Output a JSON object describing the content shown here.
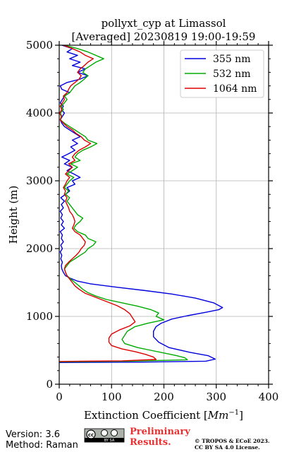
{
  "chart_data": {
    "type": "line",
    "title_line1": "pollyxt_cyp at Limassol",
    "title_line2": "[Averaged] 20230819 19:00-19:59",
    "xlabel_prefix": "Extinction Coefficient [",
    "xlabel_unit": "Mm",
    "xlabel_exp": "−1",
    "xlabel_suffix": "]",
    "ylabel": "Height (m)",
    "xlim": [
      0,
      400
    ],
    "ylim": [
      0,
      5000
    ],
    "xticks": [
      0,
      100,
      200,
      300,
      400
    ],
    "yticks": [
      0,
      1000,
      2000,
      3000,
      4000,
      5000
    ],
    "grid": true,
    "legend_position": "top-right",
    "series": [
      {
        "name": "355 nm",
        "color": "#0000dd",
        "points": [
          [
            0,
            320
          ],
          [
            150,
            325
          ],
          [
            280,
            340
          ],
          [
            298,
            370
          ],
          [
            285,
            420
          ],
          [
            250,
            470
          ],
          [
            210,
            540
          ],
          [
            190,
            620
          ],
          [
            180,
            700
          ],
          [
            180,
            780
          ],
          [
            185,
            850
          ],
          [
            195,
            900
          ],
          [
            215,
            960
          ],
          [
            245,
            1010
          ],
          [
            280,
            1060
          ],
          [
            305,
            1100
          ],
          [
            312,
            1130
          ],
          [
            295,
            1200
          ],
          [
            260,
            1270
          ],
          [
            215,
            1330
          ],
          [
            165,
            1380
          ],
          [
            110,
            1430
          ],
          [
            60,
            1480
          ],
          [
            35,
            1520
          ],
          [
            22,
            1560
          ],
          [
            12,
            1600
          ],
          [
            8,
            1650
          ],
          [
            5,
            1700
          ],
          [
            4,
            1750
          ],
          [
            6,
            1800
          ],
          [
            3,
            1850
          ],
          [
            5,
            1900
          ],
          [
            2,
            1950
          ],
          [
            6,
            2000
          ],
          [
            3,
            2050
          ],
          [
            8,
            2100
          ],
          [
            4,
            2150
          ],
          [
            6,
            2200
          ],
          [
            2,
            2250
          ],
          [
            10,
            2300
          ],
          [
            4,
            2350
          ],
          [
            8,
            2400
          ],
          [
            3,
            2450
          ],
          [
            6,
            2500
          ],
          [
            2,
            2550
          ],
          [
            8,
            2600
          ],
          [
            4,
            2650
          ],
          [
            10,
            2700
          ],
          [
            3,
            2750
          ],
          [
            12,
            2800
          ],
          [
            20,
            2850
          ],
          [
            15,
            2900
          ],
          [
            30,
            2950
          ],
          [
            25,
            3000
          ],
          [
            40,
            3050
          ],
          [
            28,
            3100
          ],
          [
            15,
            3150
          ],
          [
            25,
            3200
          ],
          [
            10,
            3250
          ],
          [
            20,
            3300
          ],
          [
            5,
            3350
          ],
          [
            18,
            3400
          ],
          [
            30,
            3450
          ],
          [
            22,
            3500
          ],
          [
            35,
            3550
          ],
          [
            25,
            3600
          ],
          [
            40,
            3650
          ],
          [
            30,
            3700
          ],
          [
            20,
            3750
          ],
          [
            10,
            3800
          ],
          [
            5,
            3850
          ],
          [
            2,
            3900
          ],
          [
            6,
            3950
          ],
          [
            10,
            4000
          ],
          [
            4,
            4050
          ],
          [
            8,
            4100
          ],
          [
            2,
            4150
          ],
          [
            6,
            4200
          ],
          [
            10,
            4250
          ],
          [
            20,
            4300
          ],
          [
            5,
            4350
          ],
          [
            2,
            4400
          ],
          [
            15,
            4450
          ],
          [
            40,
            4500
          ],
          [
            55,
            4550
          ],
          [
            35,
            4600
          ],
          [
            50,
            4650
          ],
          [
            25,
            4700
          ],
          [
            40,
            4750
          ],
          [
            20,
            4800
          ],
          [
            35,
            4850
          ],
          [
            15,
            4900
          ],
          [
            25,
            4950
          ],
          [
            5,
            5000
          ]
        ]
      },
      {
        "name": "532 nm",
        "color": "#00aa00",
        "points": [
          [
            0,
            330
          ],
          [
            130,
            340
          ],
          [
            245,
            360
          ],
          [
            240,
            390
          ],
          [
            225,
            420
          ],
          [
            200,
            460
          ],
          [
            175,
            500
          ],
          [
            150,
            540
          ],
          [
            125,
            600
          ],
          [
            120,
            660
          ],
          [
            125,
            720
          ],
          [
            130,
            780
          ],
          [
            145,
            850
          ],
          [
            170,
            900
          ],
          [
            200,
            950
          ],
          [
            185,
            1000
          ],
          [
            190,
            1050
          ],
          [
            175,
            1100
          ],
          [
            150,
            1150
          ],
          [
            120,
            1200
          ],
          [
            90,
            1250
          ],
          [
            70,
            1300
          ],
          [
            55,
            1350
          ],
          [
            45,
            1400
          ],
          [
            38,
            1450
          ],
          [
            30,
            1500
          ],
          [
            22,
            1550
          ],
          [
            15,
            1600
          ],
          [
            12,
            1650
          ],
          [
            10,
            1700
          ],
          [
            15,
            1750
          ],
          [
            20,
            1800
          ],
          [
            30,
            1850
          ],
          [
            40,
            1900
          ],
          [
            50,
            1950
          ],
          [
            55,
            2000
          ],
          [
            65,
            2050
          ],
          [
            70,
            2100
          ],
          [
            55,
            2150
          ],
          [
            50,
            2200
          ],
          [
            35,
            2250
          ],
          [
            28,
            2300
          ],
          [
            32,
            2350
          ],
          [
            40,
            2400
          ],
          [
            45,
            2450
          ],
          [
            35,
            2500
          ],
          [
            30,
            2550
          ],
          [
            25,
            2600
          ],
          [
            20,
            2650
          ],
          [
            15,
            2700
          ],
          [
            20,
            2750
          ],
          [
            12,
            2800
          ],
          [
            18,
            2850
          ],
          [
            10,
            2900
          ],
          [
            15,
            2950
          ],
          [
            20,
            3000
          ],
          [
            28,
            3050
          ],
          [
            15,
            3100
          ],
          [
            25,
            3150
          ],
          [
            35,
            3200
          ],
          [
            22,
            3250
          ],
          [
            40,
            3300
          ],
          [
            30,
            3350
          ],
          [
            35,
            3400
          ],
          [
            45,
            3450
          ],
          [
            60,
            3500
          ],
          [
            72,
            3550
          ],
          [
            55,
            3600
          ],
          [
            50,
            3650
          ],
          [
            40,
            3700
          ],
          [
            30,
            3750
          ],
          [
            20,
            3800
          ],
          [
            10,
            3850
          ],
          [
            2,
            3900
          ],
          [
            5,
            3950
          ],
          [
            2,
            4000
          ],
          [
            8,
            4050
          ],
          [
            4,
            4100
          ],
          [
            10,
            4150
          ],
          [
            15,
            4200
          ],
          [
            10,
            4250
          ],
          [
            20,
            4300
          ],
          [
            25,
            4350
          ],
          [
            30,
            4400
          ],
          [
            40,
            4450
          ],
          [
            48,
            4500
          ],
          [
            55,
            4550
          ],
          [
            45,
            4600
          ],
          [
            50,
            4650
          ],
          [
            60,
            4700
          ],
          [
            70,
            4750
          ],
          [
            85,
            4800
          ],
          [
            70,
            4850
          ],
          [
            55,
            4900
          ],
          [
            35,
            4950
          ],
          [
            10,
            5000
          ]
        ]
      },
      {
        "name": "1064 nm",
        "color": "#dd0000",
        "points": [
          [
            0,
            335
          ],
          [
            120,
            345
          ],
          [
            185,
            365
          ],
          [
            180,
            400
          ],
          [
            165,
            440
          ],
          [
            145,
            480
          ],
          [
            120,
            520
          ],
          [
            100,
            570
          ],
          [
            95,
            620
          ],
          [
            95,
            680
          ],
          [
            100,
            740
          ],
          [
            115,
            800
          ],
          [
            135,
            860
          ],
          [
            145,
            920
          ],
          [
            140,
            980
          ],
          [
            135,
            1040
          ],
          [
            125,
            1100
          ],
          [
            110,
            1160
          ],
          [
            90,
            1220
          ],
          [
            70,
            1280
          ],
          [
            50,
            1340
          ],
          [
            38,
            1400
          ],
          [
            30,
            1450
          ],
          [
            25,
            1500
          ],
          [
            20,
            1550
          ],
          [
            15,
            1600
          ],
          [
            12,
            1650
          ],
          [
            10,
            1700
          ],
          [
            12,
            1750
          ],
          [
            18,
            1800
          ],
          [
            25,
            1850
          ],
          [
            32,
            1900
          ],
          [
            38,
            1950
          ],
          [
            42,
            2000
          ],
          [
            48,
            2050
          ],
          [
            50,
            2100
          ],
          [
            45,
            2150
          ],
          [
            40,
            2200
          ],
          [
            30,
            2250
          ],
          [
            25,
            2300
          ],
          [
            28,
            2350
          ],
          [
            30,
            2400
          ],
          [
            28,
            2450
          ],
          [
            25,
            2500
          ],
          [
            20,
            2550
          ],
          [
            18,
            2600
          ],
          [
            15,
            2650
          ],
          [
            12,
            2700
          ],
          [
            15,
            2750
          ],
          [
            10,
            2800
          ],
          [
            12,
            2850
          ],
          [
            8,
            2900
          ],
          [
            12,
            2950
          ],
          [
            15,
            3000
          ],
          [
            20,
            3050
          ],
          [
            12,
            3100
          ],
          [
            18,
            3150
          ],
          [
            25,
            3200
          ],
          [
            18,
            3250
          ],
          [
            30,
            3300
          ],
          [
            25,
            3350
          ],
          [
            30,
            3400
          ],
          [
            38,
            3450
          ],
          [
            50,
            3500
          ],
          [
            60,
            3550
          ],
          [
            48,
            3600
          ],
          [
            42,
            3650
          ],
          [
            32,
            3700
          ],
          [
            25,
            3750
          ],
          [
            15,
            3800
          ],
          [
            8,
            3850
          ],
          [
            2,
            3900
          ],
          [
            4,
            3950
          ],
          [
            1,
            4000
          ],
          [
            5,
            4050
          ],
          [
            2,
            4100
          ],
          [
            6,
            4150
          ],
          [
            10,
            4200
          ],
          [
            8,
            4250
          ],
          [
            15,
            4300
          ],
          [
            18,
            4350
          ],
          [
            22,
            4400
          ],
          [
            30,
            4450
          ],
          [
            38,
            4500
          ],
          [
            42,
            4550
          ],
          [
            35,
            4600
          ],
          [
            40,
            4650
          ],
          [
            48,
            4700
          ],
          [
            55,
            4750
          ],
          [
            65,
            4800
          ],
          [
            50,
            4850
          ],
          [
            40,
            4900
          ],
          [
            25,
            4950
          ],
          [
            8,
            5000
          ]
        ]
      }
    ]
  },
  "footer": {
    "version": "Version: 3.6",
    "method": "Method: Raman",
    "preliminary_line1": "Preliminary",
    "preliminary_line2": "Results.",
    "copyright_line1": "© TROPOS & ECoE 2023.",
    "copyright_line2": "CC BY SA 4.0 License.",
    "license_badge_text": "BY SA"
  },
  "colors": {
    "preliminary": "#e83030",
    "grid": "#b0b0b0"
  }
}
